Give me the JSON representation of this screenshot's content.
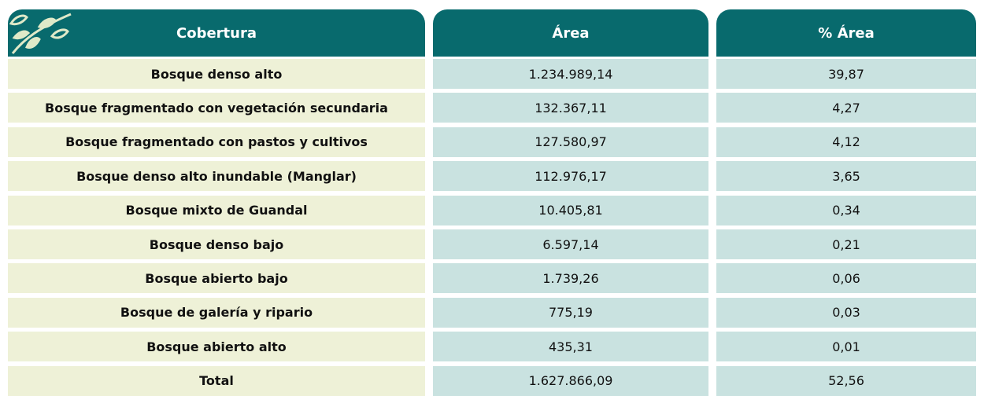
{
  "table": {
    "headers": [
      "Cobertura",
      "Área",
      "% Área"
    ],
    "rows": [
      [
        "Bosque denso alto",
        "1.234.989,14",
        "39,87"
      ],
      [
        "Bosque fragmentado con vegetación secundaria",
        "132.367,11",
        "4,27"
      ],
      [
        "Bosque fragmentado con pastos y cultivos",
        "127.580,97",
        "4,12"
      ],
      [
        "Bosque denso alto inundable (Manglar)",
        "112.976,17",
        "3,65"
      ],
      [
        "Bosque mixto de Guandal",
        "10.405,81",
        "0,34"
      ],
      [
        "Bosque denso bajo",
        "6.597,14",
        "0,21"
      ],
      [
        "Bosque abierto bajo",
        "1.739,26",
        "0,06"
      ],
      [
        "Bosque de galería y ripario",
        "775,19",
        "0,03"
      ],
      [
        "Bosque abierto alto",
        "435,31",
        "0,01"
      ],
      [
        "Total",
        "1.627.866,09",
        "52,56"
      ]
    ]
  }
}
